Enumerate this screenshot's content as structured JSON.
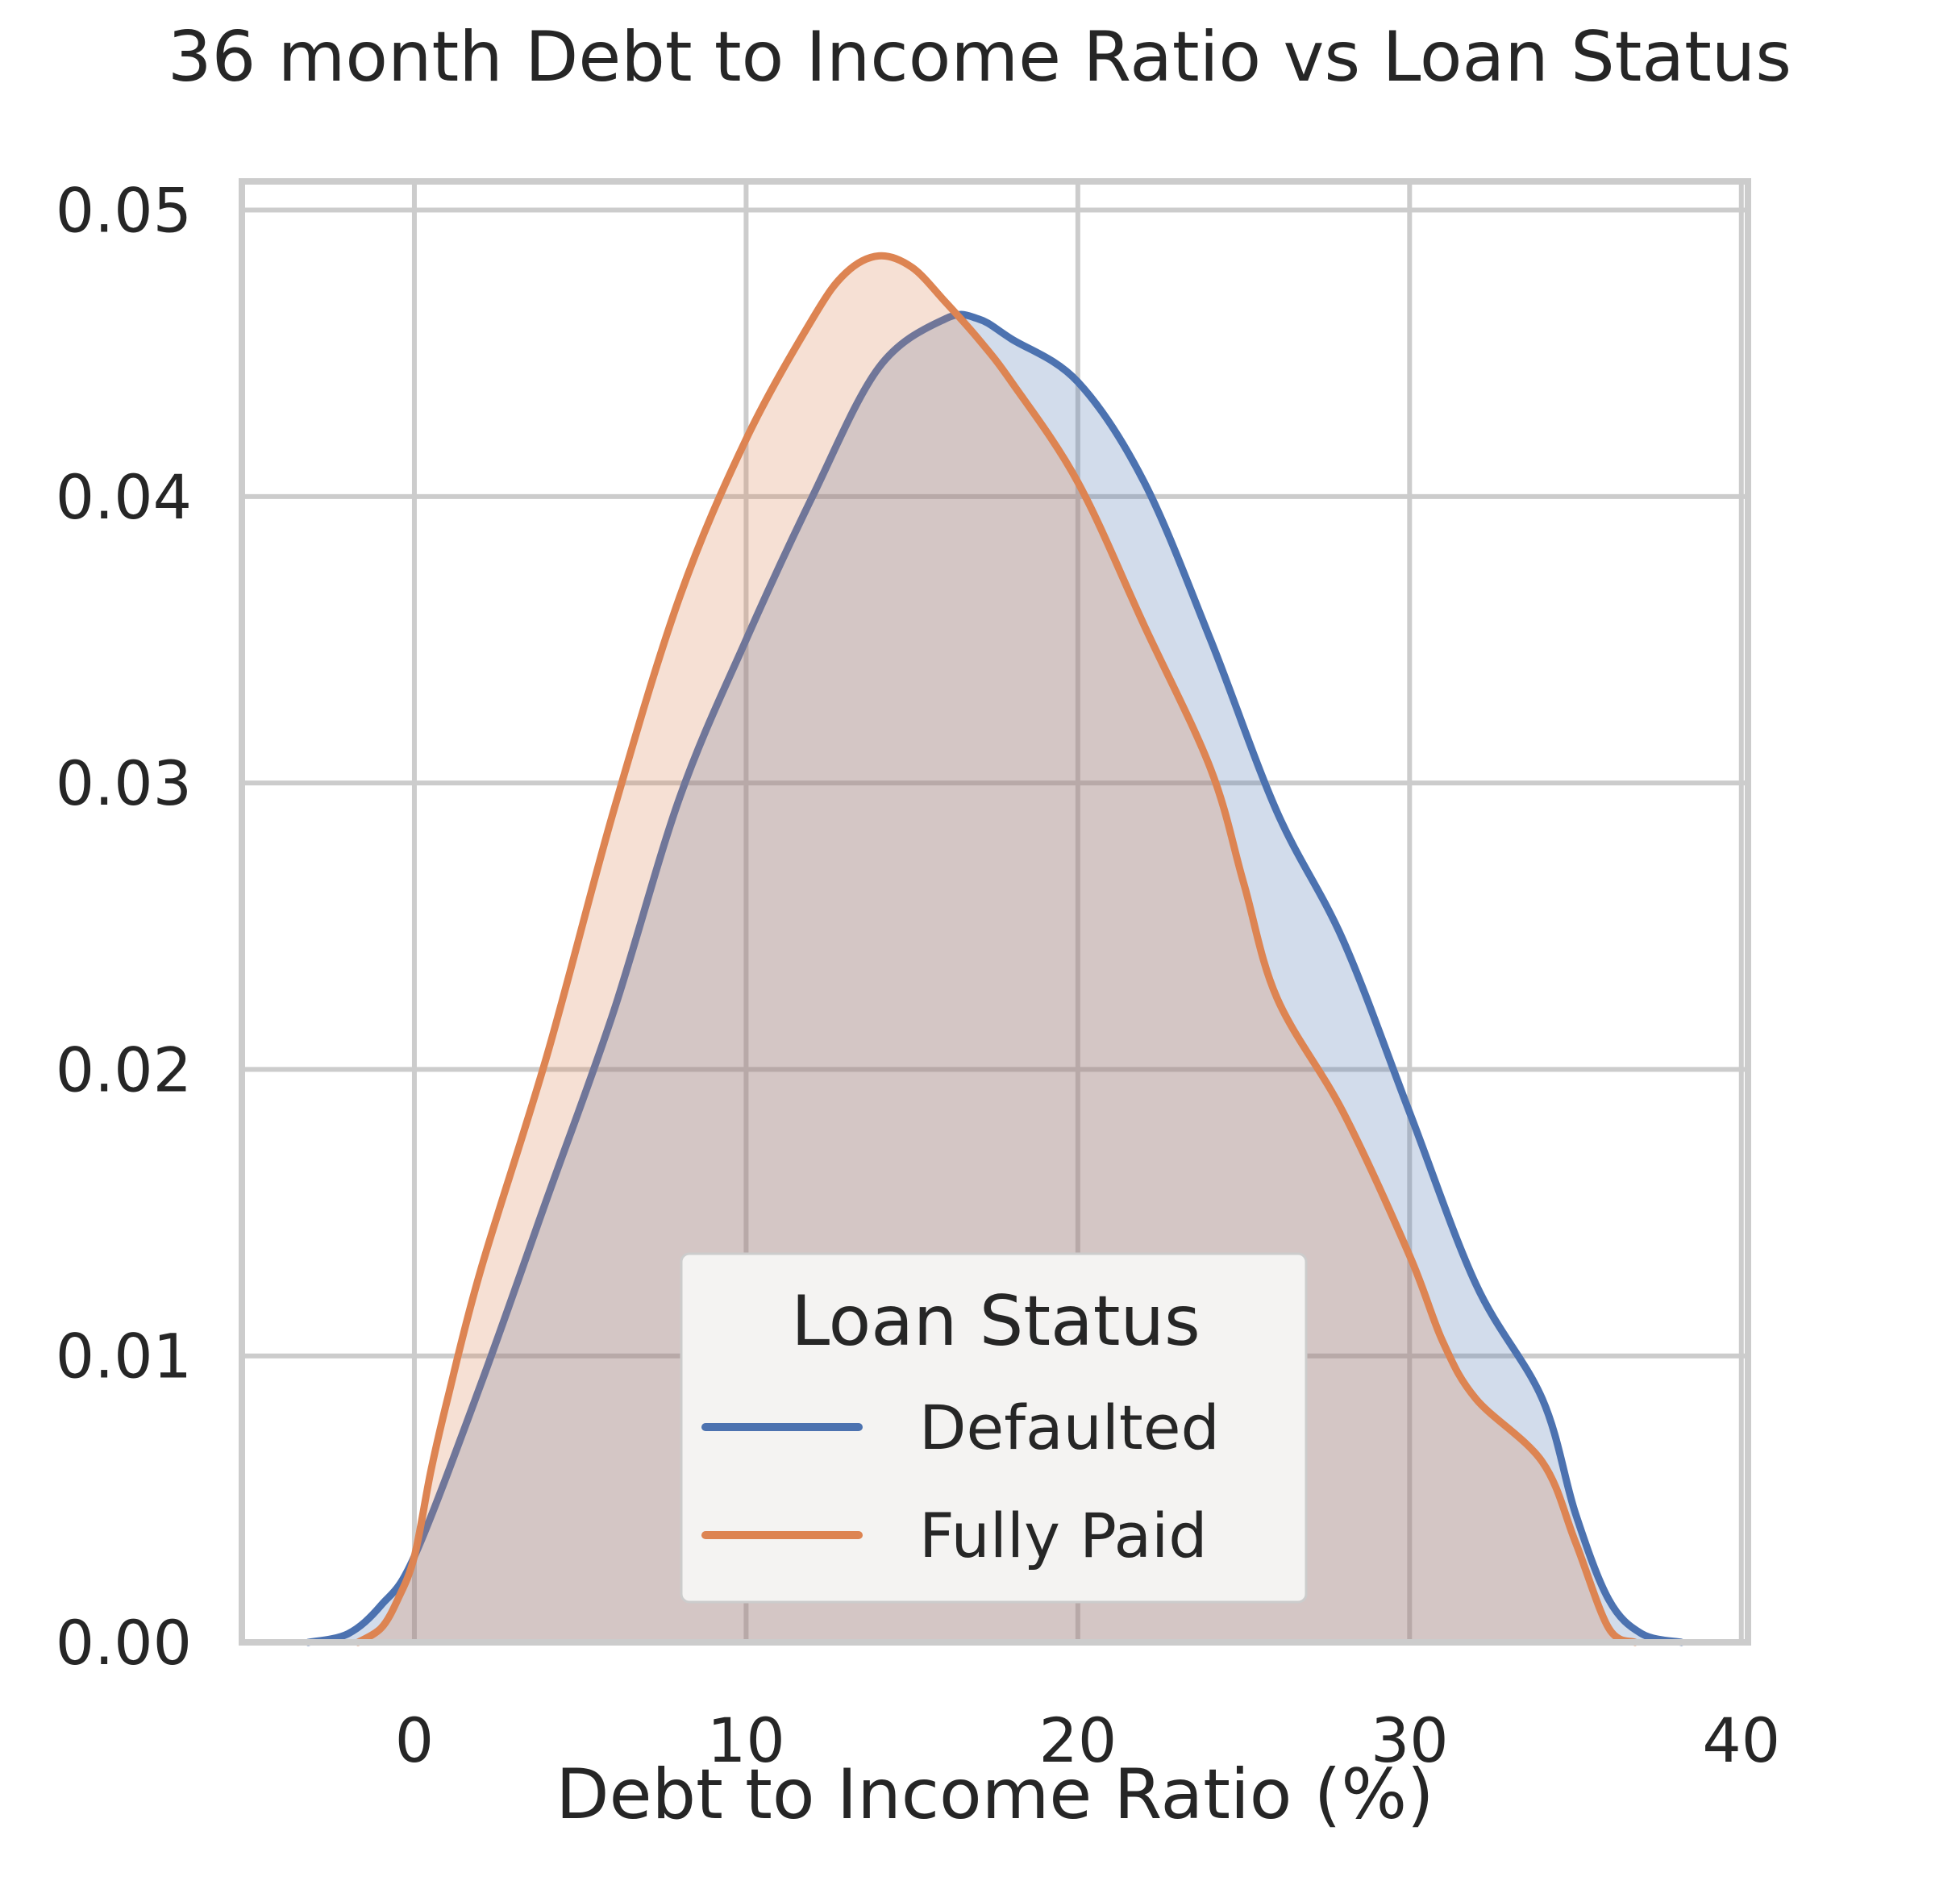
{
  "chart_data": {
    "type": "area",
    "title": "36 month Debt to Income Ratio vs Loan Status",
    "xlabel": "Debt to Income Ratio (%)",
    "ylabel": "",
    "xlim": [
      -5.2,
      40.2
    ],
    "ylim": [
      0,
      0.051
    ],
    "xticks": [
      0,
      10,
      20,
      30,
      40
    ],
    "xtick_labels": [
      "0",
      "10",
      "20",
      "30",
      "40"
    ],
    "yticks": [
      0,
      0.01,
      0.02,
      0.03,
      0.04,
      0.05
    ],
    "ytick_labels": [
      "0.00",
      "0.01",
      "0.02",
      "0.03",
      "0.04",
      "0.05"
    ],
    "grid": true,
    "legend": {
      "title": "Loan Status",
      "placement": "lower-center"
    },
    "series": [
      {
        "name": "Defaulted",
        "color": "#4c72b0",
        "x": [
          -3.2,
          -2,
          -1,
          0,
          2,
          4,
          6,
          8,
          10,
          12,
          14,
          16,
          17,
          18,
          20,
          22,
          24,
          26,
          28,
          30,
          32,
          34,
          35,
          36,
          37,
          38.2
        ],
        "y": [
          0,
          0.0003,
          0.0013,
          0.003,
          0.009,
          0.0155,
          0.022,
          0.0295,
          0.035,
          0.04,
          0.0445,
          0.0462,
          0.0462,
          0.0455,
          0.044,
          0.0405,
          0.035,
          0.029,
          0.0245,
          0.0185,
          0.0125,
          0.0085,
          0.0045,
          0.0015,
          0.0003,
          0
        ]
      },
      {
        "name": "Fully Paid",
        "color": "#dd8452",
        "x": [
          -1.7,
          -1,
          -0.5,
          0,
          0.5,
          1,
          2,
          4,
          6,
          8,
          10,
          12,
          13,
          14,
          15,
          16,
          17,
          18,
          20,
          22,
          24,
          25,
          26,
          28,
          30,
          31,
          32,
          34,
          35,
          36,
          36.8
        ],
        "y": [
          0,
          0.0005,
          0.0015,
          0.003,
          0.006,
          0.0085,
          0.013,
          0.0205,
          0.029,
          0.0365,
          0.042,
          0.0462,
          0.0478,
          0.0484,
          0.048,
          0.0468,
          0.0455,
          0.044,
          0.0405,
          0.0355,
          0.0305,
          0.0265,
          0.0225,
          0.0185,
          0.0135,
          0.0105,
          0.0085,
          0.0063,
          0.0035,
          0.0005,
          0
        ]
      }
    ]
  }
}
